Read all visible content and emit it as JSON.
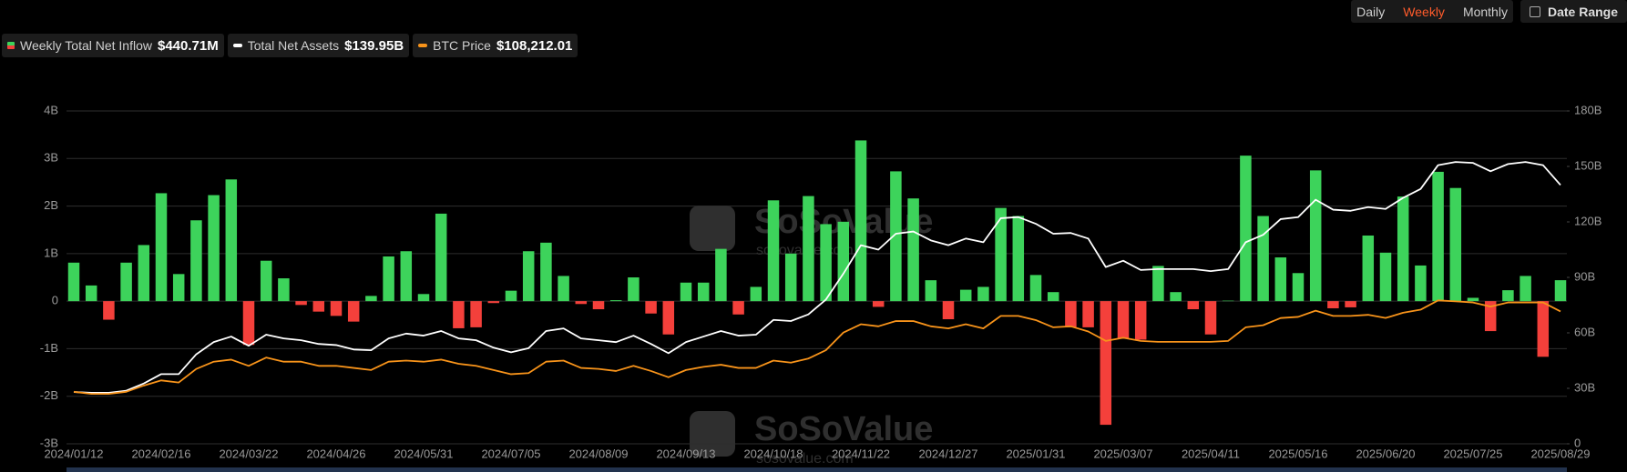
{
  "controls": {
    "periods": [
      "Daily",
      "Weekly",
      "Monthly"
    ],
    "date_range": "Date Range"
  },
  "watermark": {
    "brand": "SoSoValue",
    "site": "sosovalue.com"
  },
  "chart_data": {
    "type": "combo",
    "categories": [
      "2024/01/12",
      null,
      null,
      null,
      null,
      "2024/02/16",
      null,
      null,
      null,
      null,
      "2024/03/22",
      null,
      null,
      null,
      null,
      "2024/04/26",
      null,
      null,
      null,
      null,
      "2024/05/31",
      null,
      null,
      null,
      null,
      "2024/07/05",
      null,
      null,
      null,
      null,
      "2024/08/09",
      null,
      null,
      null,
      null,
      "2024/09/13",
      null,
      null,
      null,
      null,
      "2024/10/18",
      null,
      null,
      null,
      null,
      "2024/11/22",
      null,
      null,
      null,
      null,
      "2024/12/27",
      null,
      null,
      null,
      null,
      "2025/01/31",
      null,
      null,
      null,
      null,
      "2025/03/07",
      null,
      null,
      null,
      null,
      "2025/04/11",
      null,
      null,
      null,
      null,
      "2025/05/16",
      null,
      null,
      null,
      null,
      "2025/06/20",
      null,
      null,
      null,
      null,
      "2025/07/25",
      null,
      null,
      null,
      null,
      "2025/08/29"
    ],
    "series": [
      {
        "name": "Weekly Total Net Inflow",
        "type": "bar",
        "latest_label": "$440.71M",
        "color": "#3dd35b",
        "negative_color": "#f4403b",
        "values": [
          0.81,
          0.33,
          -0.39,
          0.81,
          1.18,
          2.27,
          0.57,
          1.7,
          2.23,
          2.56,
          -0.92,
          0.85,
          0.48,
          -0.08,
          -0.22,
          -0.31,
          -0.43,
          0.11,
          0.94,
          1.05,
          0.15,
          1.84,
          -0.57,
          -0.55,
          -0.04,
          0.22,
          1.05,
          1.23,
          0.53,
          -0.06,
          -0.17,
          0.02,
          0.5,
          -0.26,
          -0.7,
          0.39,
          0.39,
          1.1,
          -0.28,
          0.3,
          2.12,
          1.0,
          2.21,
          1.62,
          1.67,
          3.38,
          -0.12,
          2.73,
          2.16,
          0.44,
          -0.38,
          0.24,
          0.3,
          1.96,
          1.79,
          0.55,
          0.19,
          -0.55,
          -0.55,
          -2.6,
          -0.79,
          -0.81,
          0.74,
          0.19,
          -0.17,
          -0.7,
          0.01,
          3.06,
          1.79,
          0.92,
          0.59,
          2.75,
          -0.15,
          -0.13,
          1.38,
          1.02,
          2.2,
          0.75,
          2.72,
          2.38,
          0.07,
          -0.63,
          0.23,
          0.53,
          -1.17,
          0.44071
        ]
      },
      {
        "name": "Total Net Assets",
        "type": "line",
        "axis": "y2",
        "latest_label": "$139.95B",
        "color": "#ffffff",
        "values": [
          28,
          27.6,
          27.6,
          28.7,
          32.6,
          37.7,
          37.7,
          48.4,
          55,
          58,
          53,
          59,
          57,
          56,
          54,
          53.4,
          51,
          50.6,
          57,
          59.6,
          58.5,
          61,
          57,
          56,
          52,
          49.5,
          51.7,
          61,
          62.4,
          57,
          56,
          55,
          58.5,
          54,
          49,
          55,
          58,
          61,
          58.5,
          59,
          67,
          66.4,
          70,
          78,
          92,
          107.4,
          105,
          113.6,
          114.8,
          110,
          107.4,
          111,
          109,
          122,
          122.6,
          119,
          113.6,
          114,
          111,
          95.6,
          99,
          94,
          94.5,
          94.5,
          94.5,
          93.4,
          94.5,
          109,
          113,
          121.5,
          122.6,
          132,
          126.6,
          126,
          128,
          127,
          133,
          137.8,
          150.7,
          152.4,
          151.9,
          147.4,
          151.3,
          152.4,
          150.7,
          139.95
        ]
      },
      {
        "name": "BTC Price",
        "type": "line",
        "axis": "y3",
        "latest_label": "$108,212.01",
        "color": "#f7931a",
        "values": [
          42500,
          40800,
          40800,
          42500,
          47600,
          51800,
          50100,
          61200,
          67100,
          68800,
          63700,
          70500,
          67100,
          67100,
          63700,
          63700,
          62000,
          60300,
          67100,
          68000,
          67100,
          68800,
          65400,
          63700,
          60300,
          56900,
          57800,
          67100,
          68000,
          62000,
          61200,
          59500,
          63700,
          59500,
          54400,
          60300,
          62900,
          64600,
          62000,
          62000,
          68000,
          66300,
          69700,
          76500,
          90900,
          97700,
          96000,
          100300,
          100300,
          96000,
          94300,
          97700,
          94300,
          104500,
          104500,
          101100,
          95200,
          96000,
          91800,
          84100,
          86700,
          84100,
          83300,
          83300,
          83300,
          83300,
          84100,
          95200,
          96900,
          102800,
          103700,
          108800,
          104500,
          104500,
          105400,
          102800,
          107100,
          109600,
          117200,
          116400,
          115500,
          112100,
          115500,
          115500,
          115500,
          108212.01
        ]
      }
    ],
    "ylim": [
      -3,
      4
    ],
    "yticks": [
      {
        "value": -3,
        "label": "-3B"
      },
      {
        "value": -2,
        "label": "-2B"
      },
      {
        "value": -1,
        "label": "-1B"
      },
      0,
      {
        "value": 1,
        "label": "1B"
      },
      {
        "value": 2,
        "label": "2B"
      },
      {
        "value": 3,
        "label": "3B"
      },
      {
        "value": 4,
        "label": "4B"
      }
    ],
    "y2lim": [
      0,
      180
    ],
    "y2ticks": [
      0,
      {
        "value": 30,
        "label": "30B"
      },
      {
        "value": 60,
        "label": "60B"
      },
      {
        "value": 90,
        "label": "90B"
      },
      {
        "value": 120,
        "label": "120B"
      },
      {
        "value": 150,
        "label": "150B"
      },
      {
        "value": 180,
        "label": "180B"
      }
    ],
    "y3lim": [
      0,
      272000
    ],
    "grid": true
  }
}
